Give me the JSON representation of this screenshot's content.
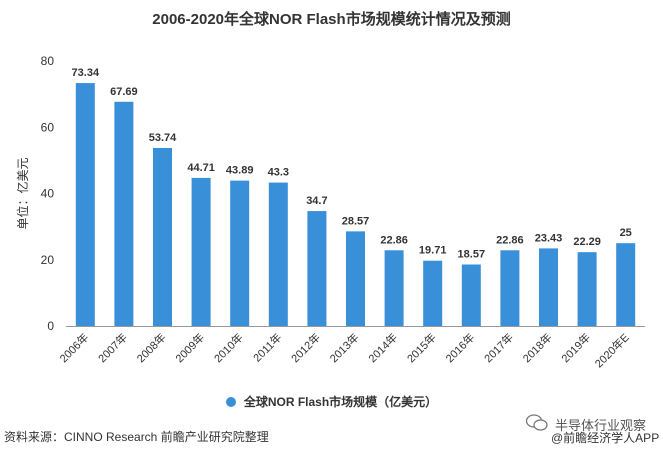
{
  "page": {
    "title": "2006-2020年全球NOR Flash市场规模统计情况及预测",
    "source": "资料来源：CINNO Research 前瞻产业研究院整理",
    "wechat_account": "半导体行业观察",
    "app": "@前瞻经济学人APP"
  },
  "chart_data": {
    "type": "bar",
    "title": "2006-2020年全球NOR Flash市场规模统计情况及预测",
    "ylabel": "单位：亿美元",
    "xlabel": "",
    "categories": [
      "2006年",
      "2007年",
      "2008年",
      "2009年",
      "2010年",
      "2011年",
      "2012年",
      "2013年",
      "2014年",
      "2015年",
      "2016年",
      "2017年",
      "2018年",
      "2019年",
      "2020年E"
    ],
    "series": [
      {
        "name": "全球NOR Flash市场规模（亿美元）",
        "values": [
          73.34,
          67.69,
          53.74,
          44.71,
          43.89,
          43.3,
          34.7,
          28.57,
          22.86,
          19.71,
          18.57,
          22.86,
          23.43,
          22.29,
          25
        ],
        "labels": [
          "73.34",
          "67.69",
          "53.74",
          "44.71",
          "43.89",
          "43.3",
          "34.7",
          "28.57",
          "22.86",
          "19.71",
          "18.57",
          "22.86",
          "23.43",
          "22.29",
          "25"
        ]
      }
    ],
    "yticks": [
      "0",
      "20",
      "40",
      "60",
      "80"
    ],
    "ylim": [
      0,
      80
    ],
    "grid": false,
    "legend": "bottom-center",
    "colors": {
      "bar": "#3a8fd9",
      "axis": "#999999",
      "text": "#333333"
    }
  }
}
